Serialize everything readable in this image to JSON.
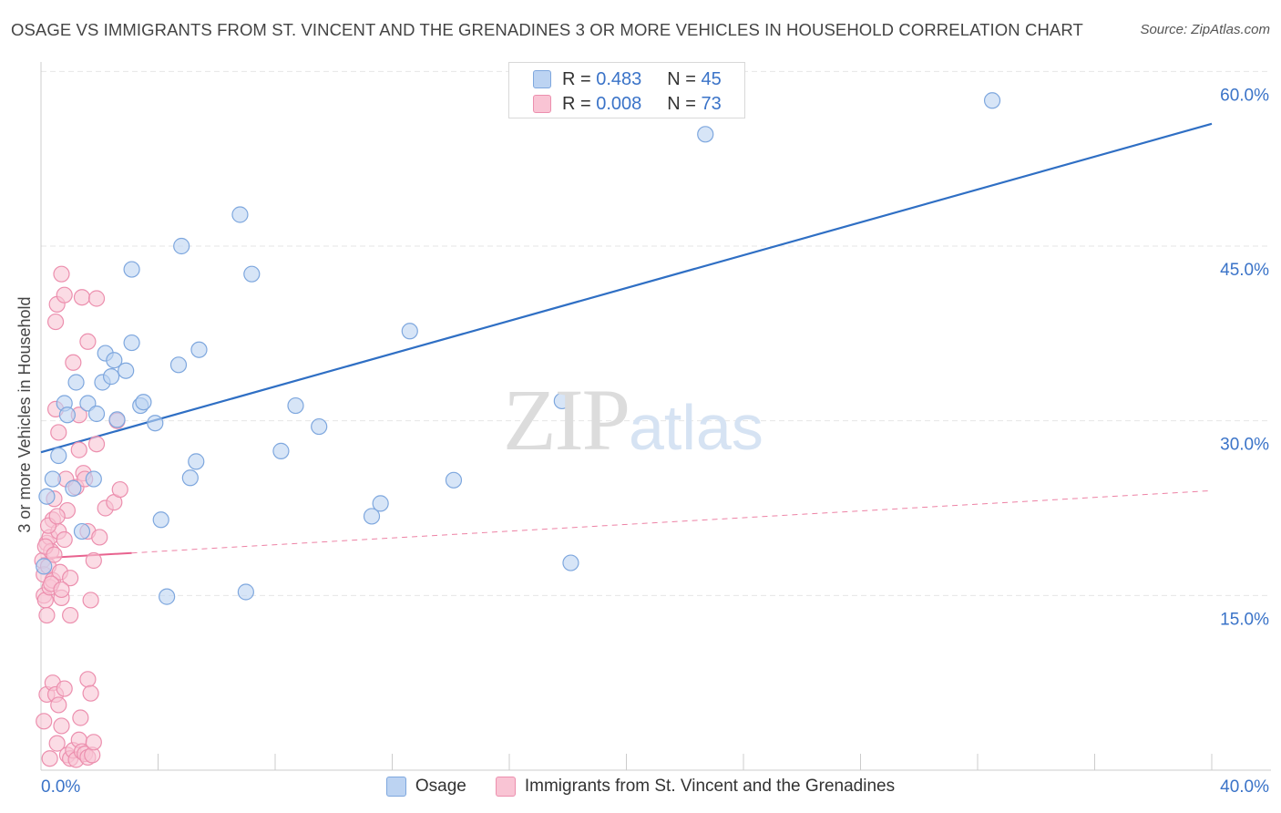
{
  "title": "OSAGE VS IMMIGRANTS FROM ST. VINCENT AND THE GRENADINES 3 OR MORE VEHICLES IN HOUSEHOLD CORRELATION CHART",
  "source": "Source: ZipAtlas.com",
  "watermark": {
    "zip": "ZIP",
    "atlas": "atlas"
  },
  "legend_top": [
    {
      "r_label": "R = ",
      "r_value": "0.483",
      "n_label": "N = ",
      "n_value": "45"
    },
    {
      "r_label": "R = ",
      "r_value": "0.008",
      "n_label": "N = ",
      "n_value": "73"
    }
  ],
  "legend_bottom": [
    "Osage",
    "Immigrants from St. Vincent and the Grenadines"
  ],
  "colors": {
    "blue_fill": "#bcd3f2",
    "blue_stroke": "#7ea7de",
    "blue_line": "#2f6fc4",
    "pink_fill": "#f9c4d4",
    "pink_stroke": "#ec8fae",
    "pink_line": "#e8638f",
    "grid": "#e6e6e6",
    "tick_text": "#3a73c8"
  },
  "chart_data": {
    "type": "scatter",
    "title": "OSAGE VS IMMIGRANTS FROM ST. VINCENT AND THE GRENADINES 3 OR MORE VEHICLES IN HOUSEHOLD CORRELATION CHART",
    "xlabel": "",
    "ylabel": "3 or more Vehicles in Household",
    "xlim": [
      0,
      40
    ],
    "ylim": [
      0,
      62
    ],
    "x_tick_labels": [
      "0.0%",
      "40.0%"
    ],
    "y_ticks": [
      15,
      30,
      45,
      60
    ],
    "y_tick_labels": [
      "15.0%",
      "30.0%",
      "45.0%",
      "60.0%"
    ],
    "grid": true,
    "series": [
      {
        "name": "Osage",
        "r": 0.483,
        "n": 45,
        "trend": {
          "x": [
            0,
            40
          ],
          "y": [
            27.3,
            55.5
          ],
          "style": "solid"
        },
        "points": [
          [
            0.2,
            23.5
          ],
          [
            0.4,
            25.0
          ],
          [
            0.6,
            27.0
          ],
          [
            0.8,
            31.5
          ],
          [
            0.9,
            30.5
          ],
          [
            1.1,
            24.2
          ],
          [
            1.2,
            33.3
          ],
          [
            1.4,
            20.5
          ],
          [
            1.6,
            31.5
          ],
          [
            1.8,
            25.0
          ],
          [
            1.9,
            30.6
          ],
          [
            2.1,
            33.3
          ],
          [
            2.2,
            35.8
          ],
          [
            2.4,
            33.8
          ],
          [
            2.5,
            35.2
          ],
          [
            2.6,
            30.1
          ],
          [
            2.9,
            34.3
          ],
          [
            3.1,
            36.7
          ],
          [
            3.1,
            43.0
          ],
          [
            3.4,
            31.3
          ],
          [
            3.5,
            31.6
          ],
          [
            3.9,
            29.8
          ],
          [
            4.1,
            21.5
          ],
          [
            4.3,
            14.9
          ],
          [
            4.7,
            34.8
          ],
          [
            4.8,
            45.0
          ],
          [
            5.1,
            25.1
          ],
          [
            5.3,
            26.5
          ],
          [
            5.4,
            36.1
          ],
          [
            6.8,
            47.7
          ],
          [
            7.0,
            15.3
          ],
          [
            7.2,
            42.6
          ],
          [
            8.2,
            27.4
          ],
          [
            8.7,
            31.3
          ],
          [
            9.5,
            29.5
          ],
          [
            11.3,
            21.8
          ],
          [
            11.6,
            22.9
          ],
          [
            12.6,
            37.7
          ],
          [
            14.1,
            24.9
          ],
          [
            17.8,
            31.7
          ],
          [
            18.1,
            17.8
          ],
          [
            22.7,
            54.6
          ],
          [
            23.5,
            59.0
          ],
          [
            32.5,
            57.5
          ],
          [
            0.1,
            17.5
          ]
        ]
      },
      {
        "name": "Immigrants from St. Vincent and the Grenadines",
        "r": 0.008,
        "n": 73,
        "trend": {
          "x": [
            0,
            40
          ],
          "y": [
            18.2,
            24.0
          ],
          "solid_until_x": 3.1,
          "style": "solid-then-dashed"
        },
        "points": [
          [
            0.05,
            18.0
          ],
          [
            0.1,
            16.8
          ],
          [
            0.1,
            15.0
          ],
          [
            0.15,
            14.6
          ],
          [
            0.2,
            13.3
          ],
          [
            0.2,
            19.5
          ],
          [
            0.25,
            17.5
          ],
          [
            0.3,
            20.0
          ],
          [
            0.3,
            15.7
          ],
          [
            0.35,
            18.8
          ],
          [
            0.4,
            21.5
          ],
          [
            0.4,
            16.3
          ],
          [
            0.45,
            23.3
          ],
          [
            0.5,
            31.0
          ],
          [
            0.5,
            38.5
          ],
          [
            0.55,
            40.0
          ],
          [
            0.6,
            29.0
          ],
          [
            0.6,
            20.5
          ],
          [
            0.65,
            17.0
          ],
          [
            0.7,
            14.8
          ],
          [
            0.7,
            42.6
          ],
          [
            0.8,
            40.8
          ],
          [
            0.85,
            25.0
          ],
          [
            0.9,
            22.3
          ],
          [
            1.0,
            16.5
          ],
          [
            1.0,
            13.3
          ],
          [
            1.1,
            35.0
          ],
          [
            1.2,
            24.3
          ],
          [
            1.3,
            30.5
          ],
          [
            1.3,
            27.5
          ],
          [
            1.4,
            40.6
          ],
          [
            1.45,
            25.5
          ],
          [
            1.5,
            25.0
          ],
          [
            1.6,
            20.5
          ],
          [
            1.6,
            36.8
          ],
          [
            1.7,
            14.6
          ],
          [
            1.8,
            18.0
          ],
          [
            1.9,
            40.5
          ],
          [
            1.9,
            28.0
          ],
          [
            2.0,
            20.0
          ],
          [
            2.2,
            22.5
          ],
          [
            2.5,
            23.0
          ],
          [
            2.6,
            30.0
          ],
          [
            2.7,
            24.1
          ],
          [
            0.1,
            4.2
          ],
          [
            0.2,
            6.5
          ],
          [
            0.3,
            1.0
          ],
          [
            0.4,
            7.5
          ],
          [
            0.5,
            6.5
          ],
          [
            0.55,
            2.3
          ],
          [
            0.6,
            5.6
          ],
          [
            0.7,
            3.8
          ],
          [
            0.8,
            7.0
          ],
          [
            0.9,
            1.3
          ],
          [
            1.0,
            1.0
          ],
          [
            1.1,
            1.7
          ],
          [
            1.2,
            0.9
          ],
          [
            1.3,
            2.6
          ],
          [
            1.35,
            4.5
          ],
          [
            1.4,
            1.6
          ],
          [
            1.5,
            1.4
          ],
          [
            1.6,
            1.1
          ],
          [
            1.6,
            7.8
          ],
          [
            1.7,
            6.6
          ],
          [
            1.75,
            1.3
          ],
          [
            1.8,
            2.4
          ],
          [
            0.15,
            19.2
          ],
          [
            0.25,
            21.0
          ],
          [
            0.35,
            16.0
          ],
          [
            0.45,
            18.5
          ],
          [
            0.55,
            21.8
          ],
          [
            0.7,
            15.5
          ],
          [
            0.8,
            19.8
          ]
        ]
      }
    ]
  }
}
